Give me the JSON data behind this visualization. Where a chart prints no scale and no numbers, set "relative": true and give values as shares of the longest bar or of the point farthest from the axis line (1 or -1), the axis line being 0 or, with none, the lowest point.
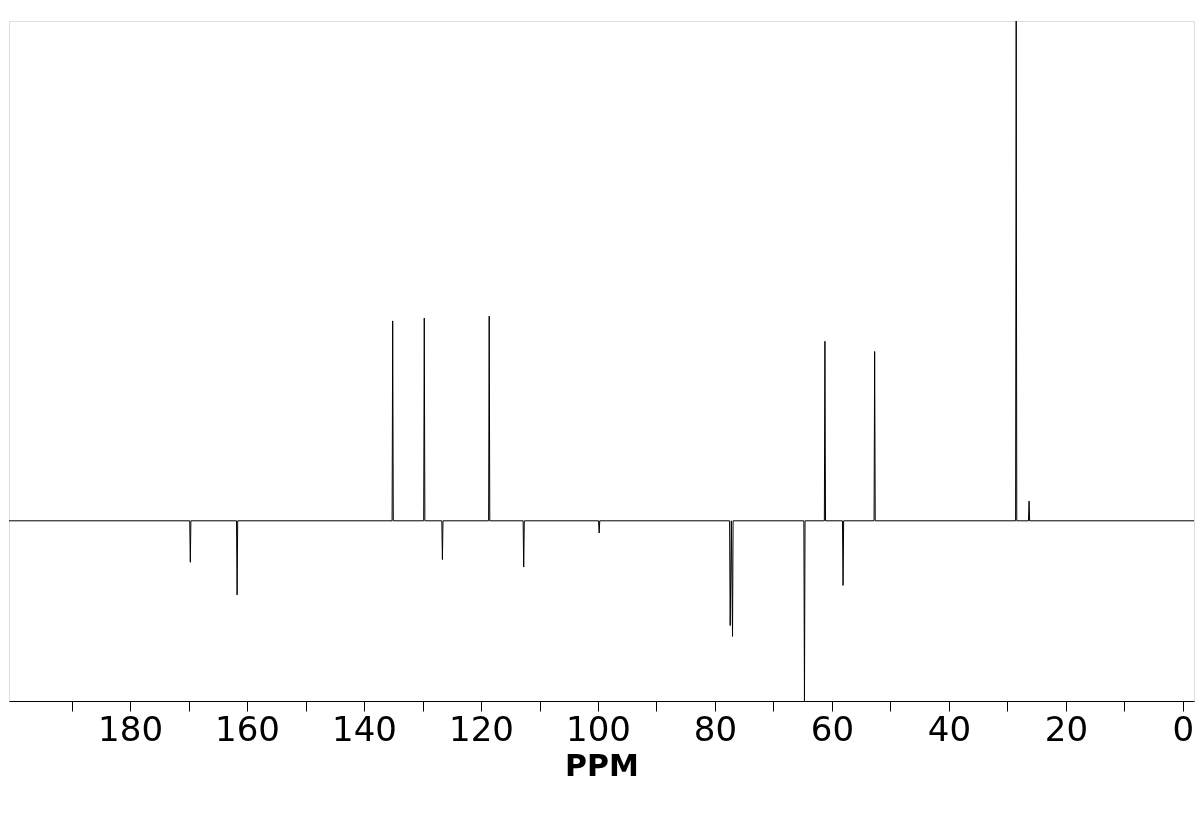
{
  "chart_data": {
    "type": "line",
    "relative": true,
    "xlabel": "PPM",
    "grid": false,
    "tick_labels": "x",
    "marker": "none",
    "color": "#000000",
    "xlim": [
      200.7,
      -1.9
    ],
    "xticks": [
      {
        "value": 190,
        "label": null
      },
      180,
      {
        "value": 170,
        "label": null
      },
      160,
      {
        "value": 150,
        "label": null
      },
      140,
      {
        "value": 130,
        "label": null
      },
      120,
      {
        "value": 110,
        "label": null
      },
      100,
      {
        "value": 90,
        "label": null
      },
      80,
      {
        "value": 70,
        "label": null
      },
      60,
      {
        "value": 50,
        "label": null
      },
      40,
      {
        "value": 30,
        "label": null
      },
      20,
      {
        "value": 10,
        "label": null
      },
      0
    ],
    "x": [
      200.7,
      169.8,
      169.7,
      169.6,
      161.8,
      161.7,
      161.6,
      135.2,
      135.1,
      135.0,
      129.8,
      129.7,
      129.6,
      126.7,
      126.6,
      126.5,
      118.7,
      118.6,
      118.5,
      112.8,
      112.7,
      112.6,
      99.9,
      99.8,
      99.7,
      77.5,
      77.4,
      77.2,
      77.0,
      76.9,
      64.8,
      64.7,
      64.6,
      61.3,
      61.2,
      61.1,
      58.2,
      58.1,
      58.0,
      52.8,
      52.7,
      52.6,
      28.6,
      28.5,
      28.4,
      26.4,
      26.3,
      26.2,
      -1.9
    ],
    "values": [
      0.265,
      0.265,
      0.204,
      0.265,
      0.265,
      0.156,
      0.265,
      0.265,
      0.559,
      0.265,
      0.265,
      0.563,
      0.265,
      0.265,
      0.208,
      0.265,
      0.265,
      0.566,
      0.265,
      0.265,
      0.197,
      0.265,
      0.265,
      0.247,
      0.265,
      0.265,
      0.111,
      0.265,
      0.095,
      0.265,
      0.265,
      0.0,
      0.265,
      0.265,
      0.529,
      0.265,
      0.265,
      0.17,
      0.265,
      0.265,
      0.514,
      0.265,
      0.265,
      1.0,
      0.265,
      0.265,
      0.294,
      0.265,
      0.265
    ]
  }
}
